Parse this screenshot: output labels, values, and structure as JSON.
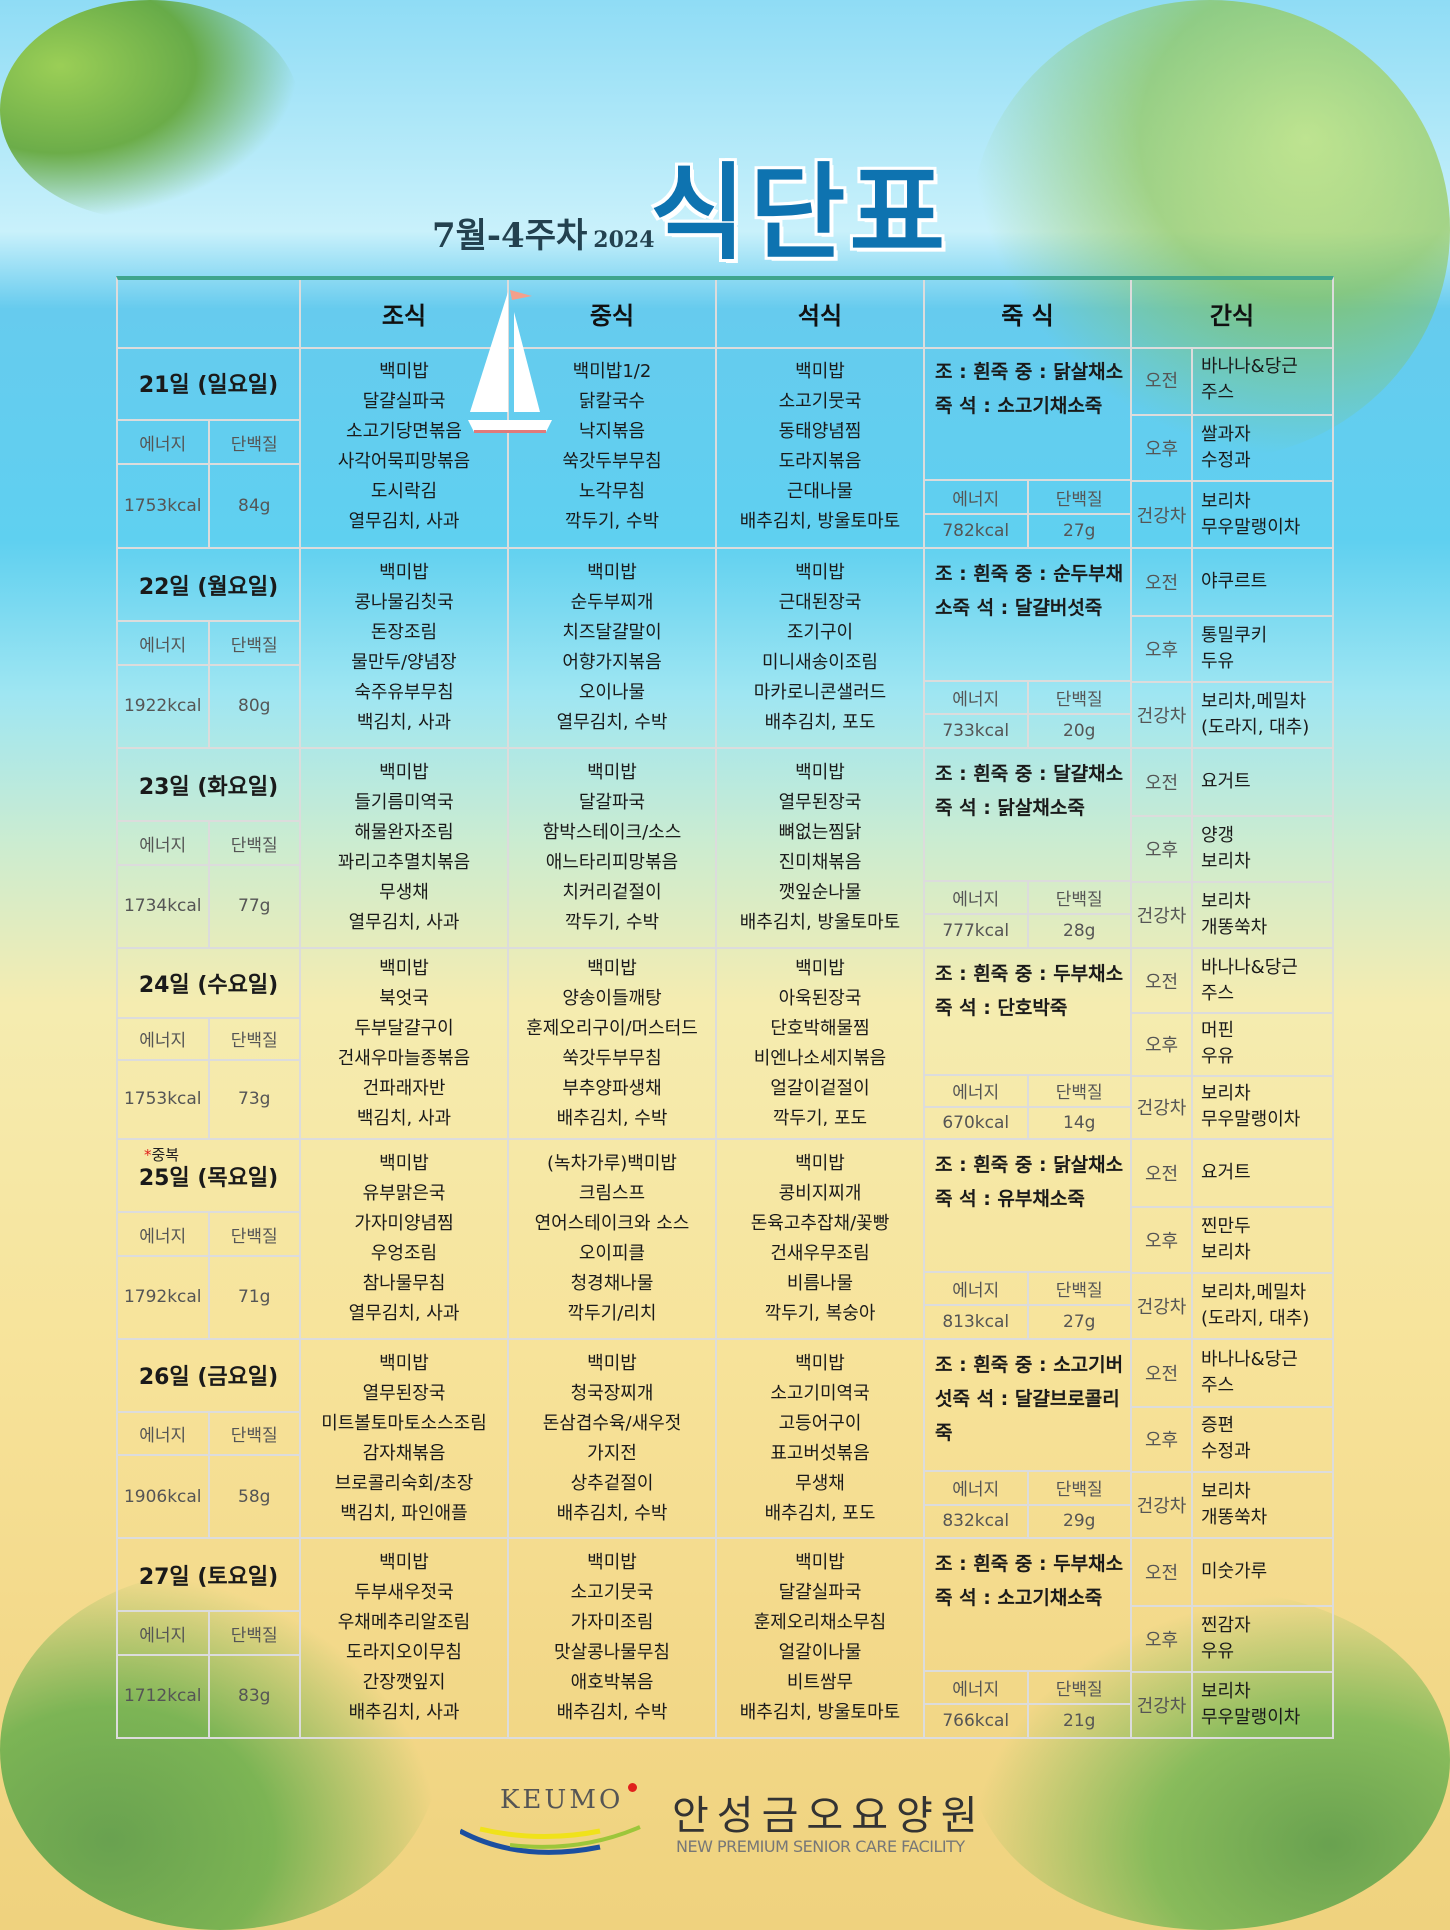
{
  "header": {
    "week": "7월-4주차",
    "year": "2024",
    "title": "식단표"
  },
  "columns": [
    "조식",
    "중식",
    "석식",
    "죽 식",
    "간식"
  ],
  "labels": {
    "energy": "에너지",
    "protein": "단백질",
    "am": "오전",
    "pm": "오후",
    "tea": "건강차"
  },
  "days": [
    {
      "day": "21일 (일요일)",
      "energy": "1753kcal",
      "protein": "84g",
      "breakfast": "백미밥\n달걀실파국\n소고기당면볶음\n사각어묵피망볶음\n도시락김\n열무김치, 사과",
      "lunch": "백미밥1/2\n닭칼국수\n낙지볶음\n쑥갓두부무침\n노각무침\n깍두기, 수박",
      "dinner": "백미밥\n소고기뭇국\n동태양념찜\n도라지볶음\n근대나물\n배추김치, 방울토마토",
      "porridge": "조 : 흰죽\n중 : 닭살채소죽\n석 : 소고기채소죽",
      "p_energy": "782kcal",
      "p_protein": "27g",
      "am": "바나나&당근\n주스",
      "pm": "쌀과자\n수정과",
      "tea": "보리차\n무우말랭이차"
    },
    {
      "day": "22일 (월요일)",
      "energy": "1922kcal",
      "protein": "80g",
      "breakfast": "백미밥\n콩나물김칫국\n돈장조림\n물만두/양념장\n숙주유부무침\n백김치, 사과",
      "lunch": "백미밥\n순두부찌개\n치즈달걀말이\n어향가지볶음\n오이나물\n열무김치, 수박",
      "dinner": "백미밥\n근대된장국\n조기구이\n미니새송이조림\n마카로니콘샐러드\n배추김치, 포도",
      "porridge": "조 : 흰죽\n중 : 순두부채소죽\n석 : 달걀버섯죽",
      "p_energy": "733kcal",
      "p_protein": "20g",
      "am": "야쿠르트",
      "pm": "통밀쿠키\n두유",
      "tea": "보리차,메밀차\n(도라지, 대추)"
    },
    {
      "day": "23일 (화요일)",
      "energy": "1734kcal",
      "protein": "77g",
      "breakfast": "백미밥\n들기름미역국\n해물완자조림\n꽈리고추멸치볶음\n무생채\n열무김치, 사과",
      "lunch": "백미밥\n달갈파국\n함박스테이크/소스\n애느타리피망볶음\n치커리겉절이\n깍두기, 수박",
      "dinner": "백미밥\n열무된장국\n뼈없는찜닭\n진미채볶음\n깻잎순나물\n배추김치, 방울토마토",
      "porridge": "조 : 흰죽\n중 : 달걀채소죽\n석 : 닭살채소죽",
      "p_energy": "777kcal",
      "p_protein": "28g",
      "am": "요거트",
      "pm": "양갱\n보리차",
      "tea": "보리차\n개똥쑥차"
    },
    {
      "day": "24일 (수요일)",
      "energy": "1753kcal",
      "protein": "73g",
      "breakfast": "백미밥\n북엇국\n두부달걀구이\n건새우마늘종볶음\n건파래자반\n백김치, 사과",
      "lunch": "백미밥\n양송이들깨탕\n훈제오리구이/머스터드\n쑥갓두부무침\n부추양파생채\n배추김치, 수박",
      "dinner": "백미밥\n아욱된장국\n단호박해물찜\n비엔나소세지볶음\n얼갈이겉절이\n깍두기, 포도",
      "porridge": "조 : 흰죽\n중 : 두부채소죽\n석 : 단호박죽",
      "p_energy": "670kcal",
      "p_protein": "14g",
      "am": "바나나&당근\n주스",
      "pm": "머핀\n우유",
      "tea": "보리차\n무우말랭이차"
    },
    {
      "day": "25일 (목요일)",
      "note_star": "*",
      "note": "중복",
      "energy": "1792kcal",
      "protein": "71g",
      "breakfast": "백미밥\n유부맑은국\n가자미양념찜\n우엉조림\n참나물무침\n열무김치, 사과",
      "lunch": "(녹차가루)백미밥\n크림스프\n연어스테이크와 소스\n오이피클\n청경채나물\n깍두기/리치",
      "dinner": "백미밥\n콩비지찌개\n돈육고추잡채/꽃빵\n건새우무조림\n비름나물\n깍두기, 복숭아",
      "porridge": "조 : 흰죽\n중 : 닭살채소죽\n석 : 유부채소죽",
      "p_energy": "813kcal",
      "p_protein": "27g",
      "am": "요거트",
      "pm": "찐만두\n보리차",
      "tea": "보리차,메밀차\n(도라지, 대추)"
    },
    {
      "day": "26일 (금요일)",
      "energy": "1906kcal",
      "protein": "58g",
      "breakfast": "백미밥\n열무된장국\n미트볼토마토소스조림\n감자채볶음\n브로콜리숙회/초장\n백김치, 파인애플",
      "lunch": "백미밥\n청국장찌개\n돈삼겹수육/새우젓\n가지전\n상추겉절이\n배추김치, 수박",
      "dinner": "백미밥\n소고기미역국\n고등어구이\n표고버섯볶음\n무생채\n배추김치, 포도",
      "porridge": "조 : 흰죽\n중 : 소고기버섯죽\n석 : 달걀브로콜리죽",
      "p_energy": "832kcal",
      "p_protein": "29g",
      "am": "바나나&당근\n주스",
      "pm": "증편\n수정과",
      "tea": "보리차\n개똥쑥차"
    },
    {
      "day": "27일 (토요일)",
      "energy": "1712kcal",
      "protein": "83g",
      "breakfast": "백미밥\n두부새우젓국\n우채메추리알조림\n도라지오이무침\n간장깻잎지\n배추김치, 사과",
      "lunch": "백미밥\n소고기뭇국\n가자미조림\n맛살콩나물무침\n애호박볶음\n배추김치, 수박",
      "dinner": "백미밥\n달걀실파국\n훈제오리채소무침\n얼갈이나물\n비트쌈무\n배추김치, 방울토마토",
      "porridge": "조 : 흰죽\n중 : 두부채소죽\n석 : 소고기채소죽",
      "p_energy": "766kcal",
      "p_protein": "21g",
      "am": "미숫가루",
      "pm": "찐감자\n우유",
      "tea": "보리차\n무우말랭이차"
    }
  ],
  "footer": {
    "logo": "KEUMO",
    "org": "안성금오요양원",
    "tagline": "NEW PREMIUM SENIOR CARE  FACILITY"
  },
  "colors": {
    "title": "#0e73b0",
    "header_rule": "#3fa58c",
    "grid": "#dcdcdc",
    "note_star": "#e0201c"
  }
}
